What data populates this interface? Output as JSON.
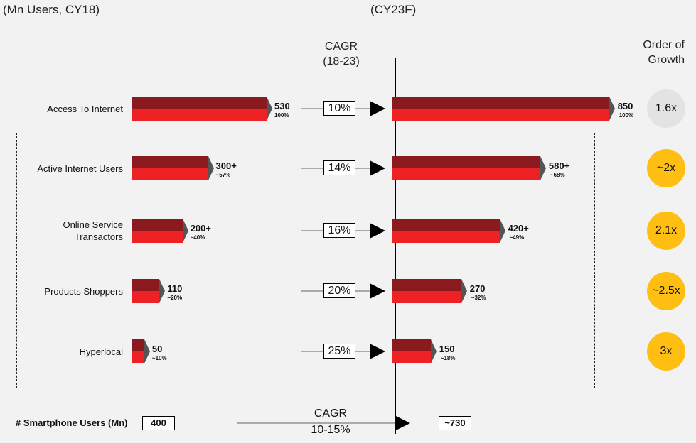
{
  "header": {
    "left": "(Mn Users, CY18)",
    "right": "(CY23F)",
    "cagr_title": "CAGR",
    "cagr_period": "(18-23)",
    "growth_title": "Order of",
    "growth_title2": "Growth"
  },
  "chart_data": {
    "type": "bar",
    "categories": [
      "Access To Internet",
      "Active Internet Users",
      "Online Service Transactors",
      "Products Shoppers",
      "Hyperlocal"
    ],
    "category_lines": [
      [
        "Access To Internet"
      ],
      [
        "Active Internet Users"
      ],
      [
        "Online Service",
        "Transactors"
      ],
      [
        "Products Shoppers"
      ],
      [
        "Hyperlocal"
      ]
    ],
    "series": [
      {
        "name": "(Mn Users, CY18)",
        "values": [
          530,
          300,
          200,
          110,
          50
        ],
        "labels": [
          "530",
          "300+",
          "200+",
          "110",
          "50"
        ],
        "share_labels": [
          "100%",
          "~57%",
          "~40%",
          "~20%",
          "~10%"
        ]
      },
      {
        "name": "(CY23F)",
        "values": [
          850,
          580,
          420,
          270,
          150
        ],
        "labels": [
          "850",
          "580+",
          "420+",
          "270",
          "150"
        ],
        "share_labels": [
          "100%",
          "~68%",
          "~49%",
          "~32%",
          "~18%"
        ]
      }
    ],
    "cagr": [
      "10%",
      "14%",
      "16%",
      "20%",
      "25%"
    ],
    "order_of_growth": [
      "1.6x",
      "~2x",
      "2.1x",
      "~2.5x",
      "3x"
    ],
    "colors": {
      "bar_top": "#8b1a1e",
      "bar_bottom": "#ee2225",
      "bar_cap": "#555555",
      "circle_grey": "#e3e3e3",
      "circle_yellow": "#ffbf12"
    }
  },
  "footer": {
    "label": "# Smartphone Users (Mn)",
    "value_cy18": "400",
    "value_cy23": "~730",
    "cagr_title": "CAGR",
    "cagr_value": "10-15%"
  }
}
